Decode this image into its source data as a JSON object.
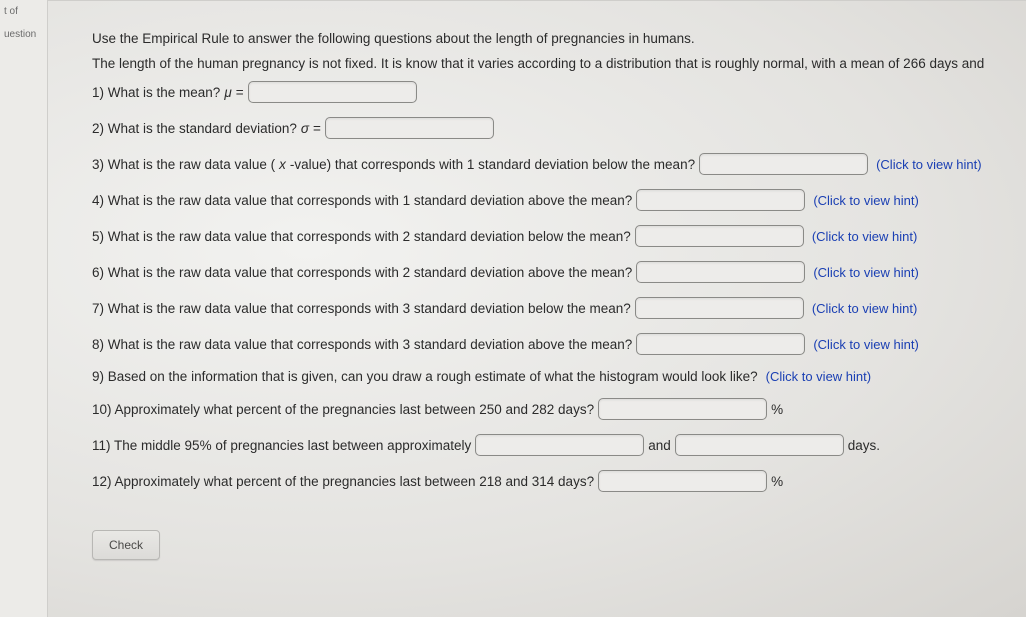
{
  "rail": {
    "item1": "t of",
    "item2": "uestion"
  },
  "intro": {
    "line1": "Use the Empirical Rule to answer the following questions about the length of pregnancies in humans.",
    "line2": "The length of the human pregnancy is not fixed. It is know that it varies according to a distribution that is roughly normal, with a mean of 266 days and"
  },
  "q1": {
    "text_a": "1) What is the mean? ",
    "mu": "μ",
    "eq": " = "
  },
  "q2": {
    "text_a": "2) What is the standard deviation? ",
    "sigma": "σ",
    "eq": " = "
  },
  "q3": {
    "text_a": "3) What is the raw data value (",
    "xval": "x",
    "text_b": "-value) that corresponds with 1 standard deviation below the mean?"
  },
  "q4": {
    "text": "4) What is the raw data value that corresponds with 1 standard deviation above the mean?"
  },
  "q5": {
    "text": "5) What is the raw data value that corresponds with 2 standard deviation below the mean?"
  },
  "q6": {
    "text": "6) What is the raw data value that corresponds with 2 standard deviation above the mean?"
  },
  "q7": {
    "text": "7) What is the raw data value that corresponds with 3 standard deviation below the mean?"
  },
  "q8": {
    "text": "8) What is the raw data value that corresponds with 3 standard deviation above the mean?"
  },
  "q9": {
    "text_a": "9) Based on the information that is given, can you draw a rough estimate of what the histogram would look like? "
  },
  "q10": {
    "text": "10) Approximately what percent of the pregnancies last between 250 and 282 days?",
    "suffix": "%"
  },
  "q11": {
    "text_a": "11) The middle 95% of pregnancies last between approximately",
    "and": "and",
    "suffix": "days."
  },
  "q12": {
    "text": "12) Approximately what percent of the pregnancies last between 218 and 314 days?",
    "suffix": "%"
  },
  "hint_label": "(Click to view hint)",
  "check_label": "Check"
}
